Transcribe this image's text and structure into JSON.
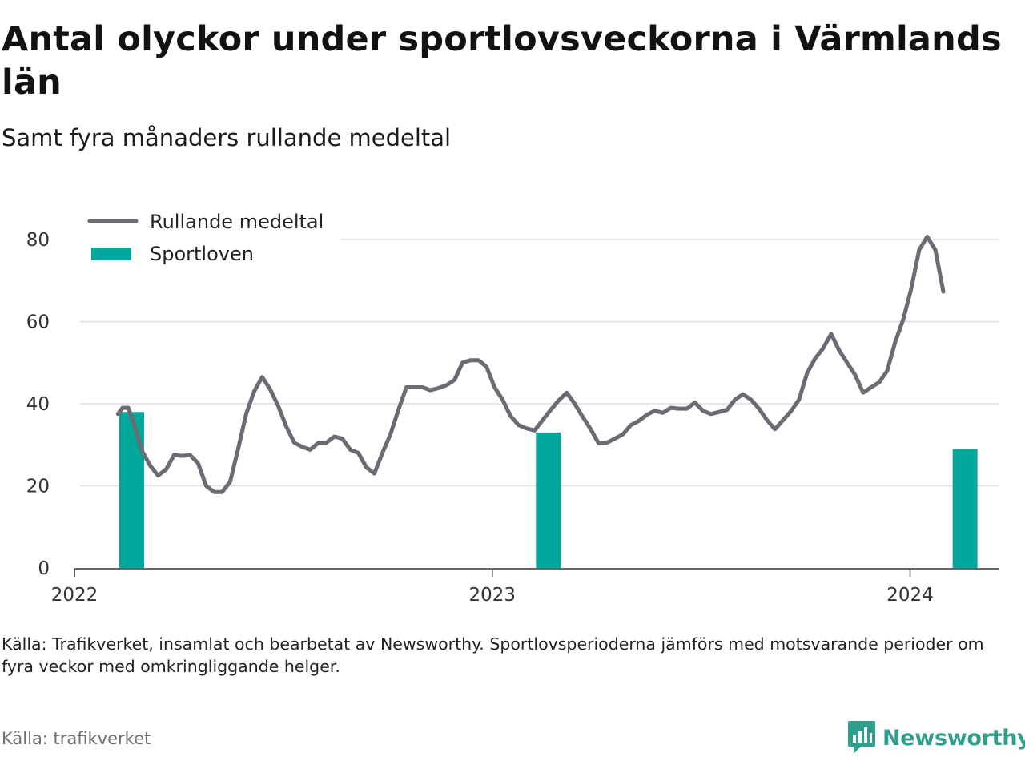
{
  "title": "Antal olyckor under sportlovsveckorna i Värmlands län",
  "subtitle": "Samt fyra månaders rullande medeltal",
  "caption": "Källa: Trafikverket, insamlat och bearbetat av Newsworthy. Sportlovsperioderna jämförs med motsvarande perioder om fyra veckor med omkringliggande helger.",
  "source": "Källa: trafikverket",
  "brand": {
    "name": "Newsworthy",
    "icon": "newsworthy-logo-icon",
    "color": "#2f9e8d"
  },
  "colors": {
    "line": "#6b6b73",
    "bars": "#00a79a",
    "grid": "#dddddd",
    "axis": "#333333"
  },
  "chart_data": {
    "type": "line",
    "title": "Antal olyckor under sportlovsveckorna i Värmlands län",
    "subtitle": "Samt fyra månaders rullande medeltal",
    "legend": {
      "placement": "top-left",
      "items": [
        {
          "name": "Rullande medeltal",
          "kind": "line"
        },
        {
          "name": "Sportloven",
          "kind": "bar"
        }
      ]
    },
    "xlim": [
      "2022-01-01",
      "2024-03-19"
    ],
    "ylim": [
      0,
      90
    ],
    "yticks": [
      0,
      20,
      40,
      60,
      80
    ],
    "xticks": [
      {
        "x": "2022-01-01",
        "label": "2022"
      },
      {
        "x": "2023-01-01",
        "label": "2023"
      },
      {
        "x": "2024-01-01",
        "label": "2024"
      }
    ],
    "grid": true,
    "series": [
      {
        "name": "Rullande medeltal",
        "type": "line",
        "points": [
          [
            "2022-02-08",
            37.5
          ],
          [
            "2022-02-12",
            39
          ],
          [
            "2022-02-17",
            39
          ],
          [
            "2022-02-22",
            35
          ],
          [
            "2022-03-01",
            28.5
          ],
          [
            "2022-03-08",
            25
          ],
          [
            "2022-03-15",
            22.5
          ],
          [
            "2022-03-22",
            24
          ],
          [
            "2022-03-29",
            27.5
          ],
          [
            "2022-04-05",
            27.3
          ],
          [
            "2022-04-12",
            27.5
          ],
          [
            "2022-04-19",
            25.5
          ],
          [
            "2022-04-26",
            20
          ],
          [
            "2022-05-03",
            18.5
          ],
          [
            "2022-05-10",
            18.5
          ],
          [
            "2022-05-17",
            21
          ],
          [
            "2022-05-24",
            29
          ],
          [
            "2022-05-31",
            37.5
          ],
          [
            "2022-06-07",
            43
          ],
          [
            "2022-06-14",
            46.5
          ],
          [
            "2022-06-21",
            43.5
          ],
          [
            "2022-06-28",
            39.5
          ],
          [
            "2022-07-05",
            34.5
          ],
          [
            "2022-07-12",
            30.5
          ],
          [
            "2022-07-19",
            29.5
          ],
          [
            "2022-07-26",
            28.8
          ],
          [
            "2022-08-02",
            30.5
          ],
          [
            "2022-08-09",
            30.5
          ],
          [
            "2022-08-16",
            32
          ],
          [
            "2022-08-23",
            31.5
          ],
          [
            "2022-08-30",
            28.8
          ],
          [
            "2022-09-06",
            28
          ],
          [
            "2022-09-13",
            24.5
          ],
          [
            "2022-09-20",
            23
          ],
          [
            "2022-09-27",
            28
          ],
          [
            "2022-10-04",
            32.5
          ],
          [
            "2022-10-11",
            38.5
          ],
          [
            "2022-10-18",
            44
          ],
          [
            "2022-10-25",
            44
          ],
          [
            "2022-11-01",
            44
          ],
          [
            "2022-11-08",
            43.3
          ],
          [
            "2022-11-15",
            43.8
          ],
          [
            "2022-11-22",
            44.5
          ],
          [
            "2022-11-29",
            45.8
          ],
          [
            "2022-12-06",
            50
          ],
          [
            "2022-12-13",
            50.6
          ],
          [
            "2022-12-20",
            50.6
          ],
          [
            "2022-12-27",
            49
          ],
          [
            "2023-01-03",
            44
          ],
          [
            "2023-01-10",
            41
          ],
          [
            "2023-01-17",
            37
          ],
          [
            "2023-01-24",
            34.8
          ],
          [
            "2023-01-31",
            34
          ],
          [
            "2023-02-07",
            33.5
          ],
          [
            "2023-02-14",
            36
          ],
          [
            "2023-02-21",
            38.5
          ],
          [
            "2023-02-28",
            40.8
          ],
          [
            "2023-03-07",
            42.7
          ],
          [
            "2023-03-14",
            40
          ],
          [
            "2023-03-21",
            36.8
          ],
          [
            "2023-03-28",
            33.8
          ],
          [
            "2023-04-04",
            30.3
          ],
          [
            "2023-04-11",
            30.5
          ],
          [
            "2023-04-18",
            31.5
          ],
          [
            "2023-04-25",
            32.5
          ],
          [
            "2023-05-02",
            34.8
          ],
          [
            "2023-05-09",
            35.8
          ],
          [
            "2023-05-16",
            37.3
          ],
          [
            "2023-05-23",
            38.3
          ],
          [
            "2023-05-30",
            37.8
          ],
          [
            "2023-06-06",
            39
          ],
          [
            "2023-06-13",
            38.8
          ],
          [
            "2023-06-20",
            38.8
          ],
          [
            "2023-06-27",
            40.3
          ],
          [
            "2023-07-04",
            38.3
          ],
          [
            "2023-07-11",
            37.5
          ],
          [
            "2023-07-18",
            38
          ],
          [
            "2023-07-25",
            38.5
          ],
          [
            "2023-08-01",
            41
          ],
          [
            "2023-08-08",
            42.3
          ],
          [
            "2023-08-15",
            41
          ],
          [
            "2023-08-22",
            38.8
          ],
          [
            "2023-08-29",
            36
          ],
          [
            "2023-09-05",
            33.8
          ],
          [
            "2023-09-12",
            36
          ],
          [
            "2023-09-19",
            38.2
          ],
          [
            "2023-09-26",
            41
          ],
          [
            "2023-10-03",
            47.5
          ],
          [
            "2023-10-10",
            51
          ],
          [
            "2023-10-17",
            53.5
          ],
          [
            "2023-10-24",
            57
          ],
          [
            "2023-10-31",
            53
          ],
          [
            "2023-11-07",
            50
          ],
          [
            "2023-11-14",
            47
          ],
          [
            "2023-11-21",
            42.7
          ],
          [
            "2023-11-28",
            44
          ],
          [
            "2023-12-05",
            45.2
          ],
          [
            "2023-12-12",
            48
          ],
          [
            "2023-12-19",
            55
          ],
          [
            "2023-12-26",
            60.5
          ],
          [
            "2024-01-02",
            68
          ],
          [
            "2024-01-09",
            77.5
          ],
          [
            "2024-01-16",
            80.7
          ],
          [
            "2024-01-23",
            77.5
          ],
          [
            "2024-01-30",
            67.3
          ]
        ]
      },
      {
        "name": "Sportloven",
        "type": "bar",
        "points": [
          [
            "2022-02-20",
            38
          ],
          [
            "2023-02-19",
            33
          ],
          [
            "2024-02-18",
            29
          ]
        ]
      }
    ]
  }
}
